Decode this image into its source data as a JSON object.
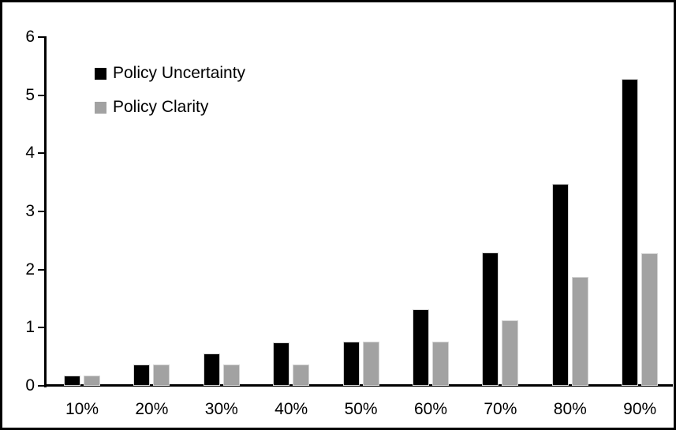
{
  "chart_data": {
    "type": "bar",
    "title": "",
    "xlabel": "",
    "ylabel": "",
    "categories": [
      "10%",
      "20%",
      "30%",
      "40%",
      "50%",
      "60%",
      "70%",
      "80%",
      "90%"
    ],
    "series": [
      {
        "name": "Policy Uncertainty",
        "color": "#000000",
        "values": [
          0.18,
          0.37,
          0.55,
          0.74,
          0.76,
          1.32,
          2.3,
          3.48,
          5.28
        ]
      },
      {
        "name": "Policy Clarity",
        "color": "#a2a2a2",
        "values": [
          0.18,
          0.37,
          0.37,
          0.37,
          0.76,
          0.76,
          1.13,
          1.87,
          2.28
        ]
      }
    ],
    "ylim": [
      0,
      6
    ],
    "yticks": [
      "0",
      "1",
      "2",
      "3",
      "4",
      "5",
      "6"
    ],
    "grid": false,
    "legend_position": "top-left",
    "axis_color": "#000000",
    "bar_border_color": "#d4d4d4",
    "frame_border_color": "#000000",
    "background": "#ffffff"
  }
}
